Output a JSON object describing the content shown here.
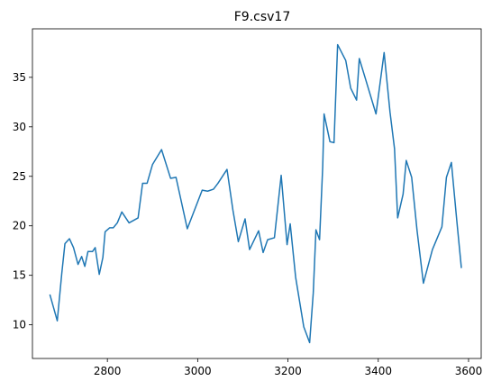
{
  "chart_data": {
    "type": "line",
    "title": "F9.csv17",
    "xlabel": "",
    "ylabel": "",
    "xlim": [
      2634,
      3628
    ],
    "ylim": [
      6.6,
      39.9
    ],
    "x_ticks": [
      2800,
      3000,
      3200,
      3400,
      3600
    ],
    "y_ticks": [
      10,
      15,
      20,
      25,
      30,
      35
    ],
    "grid": false,
    "legend": "none",
    "series": [
      {
        "color": "#1f77b4",
        "points": [
          [
            2673,
            13.0
          ],
          [
            2689,
            10.4
          ],
          [
            2699,
            15.2
          ],
          [
            2706,
            18.2
          ],
          [
            2716,
            18.7
          ],
          [
            2725,
            17.8
          ],
          [
            2735,
            16.1
          ],
          [
            2743,
            16.9
          ],
          [
            2750,
            15.9
          ],
          [
            2757,
            17.4
          ],
          [
            2767,
            17.4
          ],
          [
            2773,
            17.8
          ],
          [
            2782,
            15.1
          ],
          [
            2790,
            16.8
          ],
          [
            2795,
            19.4
          ],
          [
            2805,
            19.8
          ],
          [
            2813,
            19.8
          ],
          [
            2822,
            20.3
          ],
          [
            2832,
            21.4
          ],
          [
            2848,
            20.3
          ],
          [
            2868,
            20.8
          ],
          [
            2878,
            24.3
          ],
          [
            2888,
            24.3
          ],
          [
            2900,
            26.2
          ],
          [
            2920,
            27.7
          ],
          [
            2940,
            24.8
          ],
          [
            2952,
            24.9
          ],
          [
            2977,
            19.7
          ],
          [
            3010,
            23.6
          ],
          [
            3022,
            23.5
          ],
          [
            3035,
            23.7
          ],
          [
            3045,
            24.3
          ],
          [
            3065,
            25.7
          ],
          [
            3078,
            21.6
          ],
          [
            3090,
            18.4
          ],
          [
            3105,
            20.7
          ],
          [
            3115,
            17.6
          ],
          [
            3135,
            19.5
          ],
          [
            3145,
            17.3
          ],
          [
            3155,
            18.6
          ],
          [
            3170,
            18.8
          ],
          [
            3185,
            25.1
          ],
          [
            3198,
            18.1
          ],
          [
            3205,
            20.2
          ],
          [
            3217,
            14.8
          ],
          [
            3235,
            9.8
          ],
          [
            3248,
            8.2
          ],
          [
            3256,
            13.2
          ],
          [
            3262,
            19.6
          ],
          [
            3270,
            18.6
          ],
          [
            3277,
            26.0
          ],
          [
            3280,
            31.3
          ],
          [
            3293,
            28.5
          ],
          [
            3302,
            28.4
          ],
          [
            3310,
            38.3
          ],
          [
            3328,
            36.7
          ],
          [
            3339,
            33.9
          ],
          [
            3352,
            32.7
          ],
          [
            3358,
            36.9
          ],
          [
            3372,
            34.8
          ],
          [
            3395,
            31.3
          ],
          [
            3413,
            37.5
          ],
          [
            3426,
            31.5
          ],
          [
            3436,
            27.8
          ],
          [
            3443,
            20.8
          ],
          [
            3455,
            23.2
          ],
          [
            3462,
            26.6
          ],
          [
            3474,
            24.9
          ],
          [
            3486,
            19.5
          ],
          [
            3500,
            14.2
          ],
          [
            3520,
            17.6
          ],
          [
            3541,
            19.9
          ],
          [
            3551,
            24.9
          ],
          [
            3562,
            26.4
          ],
          [
            3574,
            20.5
          ],
          [
            3584,
            15.8
          ]
        ]
      }
    ]
  }
}
